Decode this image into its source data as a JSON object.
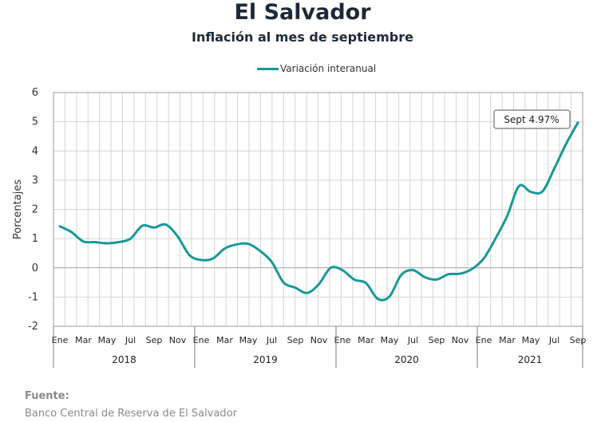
{
  "chart_data": {
    "type": "line",
    "title": "El Salvador",
    "subtitle": "Inflación al mes de septiembre",
    "xlabel": "",
    "ylabel": "Porcentajes",
    "ylim": [
      -2,
      6
    ],
    "yticks": [
      "6",
      "5",
      "4",
      "3",
      "2",
      "1",
      "0",
      "-1",
      "-2"
    ],
    "x_tick_labels": [
      "Ene",
      "Mar",
      "May",
      "Jul",
      "Sep",
      "Nov",
      "Ene",
      "Mar",
      "May",
      "Jul",
      "Sep",
      "Nov",
      "Ene",
      "Mar",
      "May",
      "Jul",
      "Sep",
      "Nov",
      "Ene",
      "Mar",
      "May",
      "Jul",
      "Sep"
    ],
    "years": [
      "2018",
      "2019",
      "2020",
      "2021"
    ],
    "grid": true,
    "legend_position": "top-center",
    "series": [
      {
        "name": "Variación interanual",
        "color": "#17989a",
        "values": [
          1.42,
          1.22,
          0.9,
          0.88,
          0.84,
          0.88,
          1.0,
          1.44,
          1.38,
          1.48,
          1.08,
          0.44,
          0.27,
          0.32,
          0.66,
          0.8,
          0.82,
          0.58,
          0.2,
          -0.5,
          -0.68,
          -0.86,
          -0.56,
          0.0,
          -0.08,
          -0.4,
          -0.52,
          -1.06,
          -0.98,
          -0.24,
          -0.08,
          -0.32,
          -0.4,
          -0.22,
          -0.2,
          -0.04,
          0.32,
          1.0,
          1.78,
          2.8,
          2.6,
          2.62,
          3.4,
          4.24,
          4.97
        ]
      }
    ],
    "annotation": "Sept 4.97%"
  },
  "source": {
    "heading": "Fuente:",
    "text": "Banco Central de Reserva de El Salvador"
  }
}
